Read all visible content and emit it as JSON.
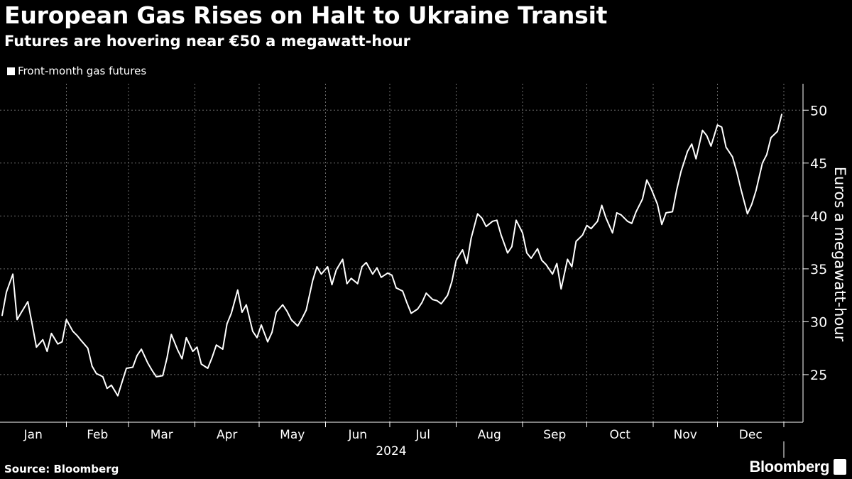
{
  "title": "European Gas Rises on Halt to Ukraine Transit",
  "subtitle": "Futures are hovering near €50 a megawatt-hour",
  "source": "Source: Bloomberg",
  "logo": "Bloomberg",
  "colors": {
    "background": "#000000",
    "line": "#ffffff",
    "grid": "#6e6e6e"
  },
  "chart_data": {
    "type": "line",
    "title": "European Gas Rises on Halt to Ukraine Transit",
    "subtitle": "Futures are hovering near €50 a megawatt-hour",
    "ylabel": "Euros a megawatt-hour",
    "xlabel": "2024",
    "ylim": [
      20.5,
      52.5
    ],
    "y_ticks": [
      25,
      30,
      35,
      40,
      45,
      50
    ],
    "y_axis_side": "right",
    "x_ticks": [
      "Jan",
      "Feb",
      "Mar",
      "Apr",
      "May",
      "Jun",
      "Jul",
      "Aug",
      "Sep",
      "Oct",
      "Nov",
      "Dec"
    ],
    "x_year_label": "2024",
    "grid": "dotted",
    "legend": "top-left",
    "series": [
      {
        "name": "Front-month gas futures",
        "x": [
          "2024-01-02",
          "2024-01-04",
          "2024-01-07",
          "2024-01-09",
          "2024-01-11",
          "2024-01-14",
          "2024-01-16",
          "2024-01-18",
          "2024-01-21",
          "2024-01-23",
          "2024-01-25",
          "2024-01-28",
          "2024-01-30",
          "2024-02-01",
          "2024-02-04",
          "2024-02-06",
          "2024-02-08",
          "2024-02-11",
          "2024-02-13",
          "2024-02-15",
          "2024-02-18",
          "2024-02-20",
          "2024-02-22",
          "2024-02-25",
          "2024-02-27",
          "2024-02-29",
          "2024-03-03",
          "2024-03-05",
          "2024-03-07",
          "2024-03-10",
          "2024-03-12",
          "2024-03-14",
          "2024-03-17",
          "2024-03-19",
          "2024-03-21",
          "2024-03-24",
          "2024-03-26",
          "2024-03-28",
          "2024-03-31",
          "2024-04-02",
          "2024-04-04",
          "2024-04-07",
          "2024-04-09",
          "2024-04-11",
          "2024-04-14",
          "2024-04-16",
          "2024-04-18",
          "2024-04-21",
          "2024-04-23",
          "2024-04-25",
          "2024-04-28",
          "2024-04-30",
          "2024-05-02",
          "2024-05-05",
          "2024-05-07",
          "2024-05-09",
          "2024-05-12",
          "2024-05-14",
          "2024-05-16",
          "2024-05-19",
          "2024-05-21",
          "2024-05-23",
          "2024-05-26",
          "2024-05-28",
          "2024-05-30",
          "2024-06-02",
          "2024-06-04",
          "2024-06-06",
          "2024-06-09",
          "2024-06-11",
          "2024-06-13",
          "2024-06-16",
          "2024-06-18",
          "2024-06-20",
          "2024-06-23",
          "2024-06-25",
          "2024-06-27",
          "2024-06-30",
          "2024-07-02",
          "2024-07-04",
          "2024-07-07",
          "2024-07-09",
          "2024-07-11",
          "2024-07-14",
          "2024-07-16",
          "2024-07-18",
          "2024-07-21",
          "2024-07-23",
          "2024-07-25",
          "2024-07-28",
          "2024-07-30",
          "2024-08-01",
          "2024-08-04",
          "2024-08-06",
          "2024-08-08",
          "2024-08-11",
          "2024-08-13",
          "2024-08-15",
          "2024-08-18",
          "2024-08-20",
          "2024-08-22",
          "2024-08-25",
          "2024-08-27",
          "2024-08-29",
          "2024-09-01",
          "2024-09-03",
          "2024-09-05",
          "2024-09-08",
          "2024-09-10",
          "2024-09-12",
          "2024-09-15",
          "2024-09-17",
          "2024-09-19",
          "2024-09-22",
          "2024-09-24",
          "2024-09-26",
          "2024-09-29",
          "2024-10-01",
          "2024-10-03",
          "2024-10-06",
          "2024-10-08",
          "2024-10-10",
          "2024-10-13",
          "2024-10-15",
          "2024-10-17",
          "2024-10-20",
          "2024-10-22",
          "2024-10-24",
          "2024-10-27",
          "2024-10-29",
          "2024-10-31",
          "2024-11-03",
          "2024-11-05",
          "2024-11-07",
          "2024-11-10",
          "2024-11-12",
          "2024-11-14",
          "2024-11-17",
          "2024-11-19",
          "2024-11-21",
          "2024-11-24",
          "2024-11-26",
          "2024-11-28",
          "2024-12-01",
          "2024-12-03",
          "2024-12-05",
          "2024-12-08",
          "2024-12-10",
          "2024-12-12",
          "2024-12-15",
          "2024-12-17",
          "2024-12-19",
          "2024-12-22",
          "2024-12-24",
          "2024-12-26",
          "2024-12-29",
          "2024-12-31"
        ],
        "values": [
          30.6,
          32.8,
          34.5,
          30.2,
          30.9,
          31.9,
          29.8,
          27.6,
          28.3,
          27.2,
          28.9,
          27.9,
          28.1,
          30.2,
          29.1,
          28.7,
          28.2,
          27.5,
          25.8,
          25.1,
          24.8,
          23.7,
          24.0,
          23.0,
          24.3,
          25.6,
          25.7,
          26.8,
          27.4,
          26.1,
          25.4,
          24.8,
          24.9,
          26.6,
          28.8,
          27.3,
          26.5,
          28.5,
          27.2,
          27.6,
          26.0,
          25.6,
          26.6,
          27.8,
          27.4,
          29.8,
          30.8,
          33.0,
          30.9,
          31.6,
          29.1,
          28.5,
          29.7,
          28.1,
          29.0,
          30.9,
          31.6,
          31.0,
          30.2,
          29.6,
          30.3,
          31.1,
          33.9,
          35.2,
          34.5,
          35.2,
          33.5,
          34.9,
          35.9,
          33.6,
          34.1,
          33.6,
          35.2,
          35.6,
          34.5,
          35.1,
          34.2,
          34.6,
          34.4,
          33.2,
          32.9,
          31.8,
          30.8,
          31.2,
          31.8,
          32.7,
          32.1,
          32.0,
          31.7,
          32.5,
          33.8,
          35.8,
          36.8,
          35.5,
          37.9,
          40.2,
          39.8,
          39.0,
          39.5,
          39.6,
          38.2,
          36.5,
          37.1,
          39.6,
          38.4,
          36.5,
          36.0,
          36.9,
          35.8,
          35.4,
          34.5,
          35.5,
          33.1,
          35.9,
          35.2,
          37.6,
          38.2,
          39.1,
          38.8,
          39.5,
          41.0,
          39.8,
          38.4,
          40.3,
          40.1,
          39.5,
          39.3,
          40.4,
          41.6,
          43.4,
          42.6,
          41.1,
          39.2,
          40.3,
          40.4,
          42.5,
          44.2,
          46.1,
          46.8,
          45.4,
          48.1,
          47.6,
          46.6,
          48.6,
          48.4,
          46.5,
          45.6,
          44.2,
          42.5,
          40.2,
          41.1,
          42.4,
          45.0,
          45.8,
          47.4,
          48.0,
          49.6
        ]
      }
    ]
  }
}
